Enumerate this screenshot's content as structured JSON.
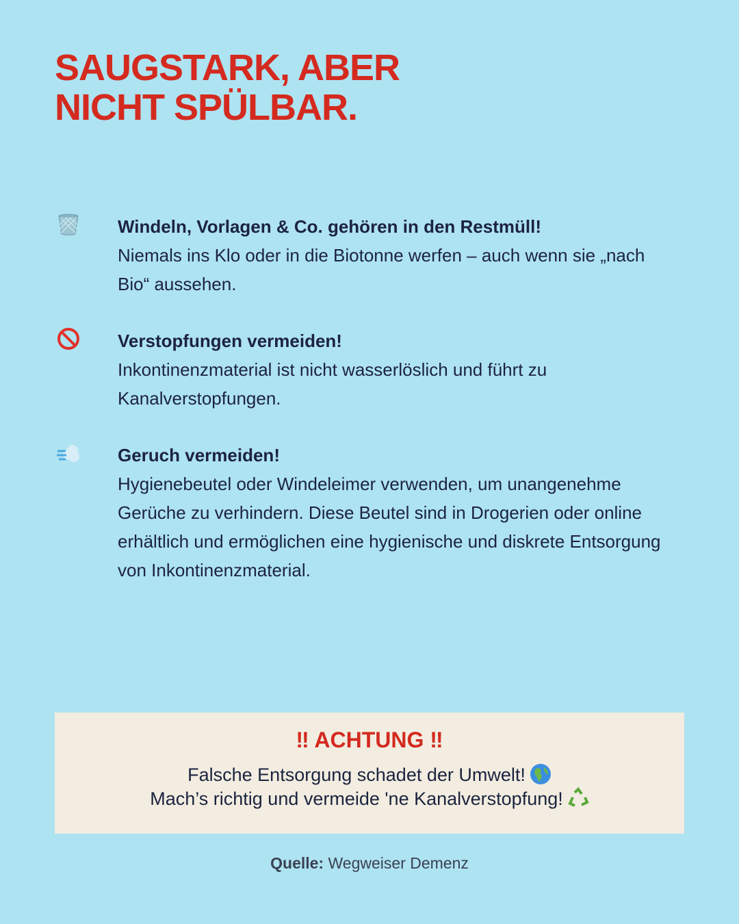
{
  "title": {
    "line1": "SAUGSTARK, ABER",
    "line2": "NICHT SPÜLBAR."
  },
  "colors": {
    "background": "#aee3f1",
    "accent": "#d42a1f",
    "text": "#1c2340",
    "box": "#f2ede0"
  },
  "items": [
    {
      "icon": "wastebasket-icon",
      "heading": "Windeln, Vorlagen & Co. gehören in den Restmüll!",
      "body": "Niemals ins Klo oder in die Biotonne werfen – auch wenn sie „nach Bio“ aussehen."
    },
    {
      "icon": "prohibited-icon",
      "heading": "Verstopfungen vermeiden!",
      "body": "Inkontinenzmaterial ist nicht wasserlöslich und führt zu Kanalverstopfungen."
    },
    {
      "icon": "dash-cloud-icon",
      "heading": "Geruch vermeiden!",
      "body": "Hygienebeutel oder Windeleimer verwenden, um unangenehme Gerüche zu verhindern. Diese Beutel sind in Drogerien oder online erhältlich und ermöglichen eine hygienische und diskrete Entsorgung von Inkontinenzmaterial."
    }
  ],
  "warning": {
    "heading": "‼ ACHTUNG ‼",
    "line1": "Falsche Entsorgung schadet der Umwelt!",
    "line1_icon": "globe-icon",
    "line2": "Mach’s richtig und vermeide 'ne Kanalverstopfung!",
    "line2_icon": "recycle-icon"
  },
  "source": {
    "label": "Quelle:",
    "value": "Wegweiser Demenz"
  }
}
